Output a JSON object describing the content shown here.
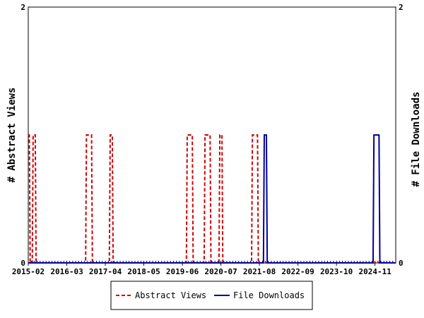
{
  "chart_data": {
    "type": "line",
    "ylabel_left": "# Abstract Views",
    "ylabel_right": "# File Downloads",
    "ylim": [
      0,
      2
    ],
    "y_ticks": [
      "0",
      "2"
    ],
    "x_ticks": [
      "2015-02",
      "2016-03",
      "2017-04",
      "2018-05",
      "2019-06",
      "2020-07",
      "2021-08",
      "2022-09",
      "2023-10",
      "2024-11"
    ],
    "x_range_months": 124,
    "legend_position": "bottom-center",
    "grid": false,
    "series": [
      {
        "name": "Abstract Views",
        "color": "#cc0000",
        "dash": true,
        "nonzero_points": [
          {
            "month": "2015-02",
            "value": 1
          },
          {
            "month": "2015-04",
            "value": 1
          },
          {
            "month": "2016-10",
            "value": 1
          },
          {
            "month": "2016-11",
            "value": 1
          },
          {
            "month": "2017-06",
            "value": 1
          },
          {
            "month": "2019-08",
            "value": 1
          },
          {
            "month": "2019-09",
            "value": 1
          },
          {
            "month": "2020-02",
            "value": 1
          },
          {
            "month": "2020-03",
            "value": 1
          },
          {
            "month": "2020-07",
            "value": 1
          },
          {
            "month": "2021-06",
            "value": 1
          },
          {
            "month": "2021-07",
            "value": 1
          }
        ]
      },
      {
        "name": "File Downloads",
        "color": "#000099",
        "dash": false,
        "nonzero_points": [
          {
            "month": "2021-10",
            "value": 1
          },
          {
            "month": "2024-11",
            "value": 1
          },
          {
            "month": "2024-12",
            "value": 1
          }
        ]
      }
    ]
  }
}
